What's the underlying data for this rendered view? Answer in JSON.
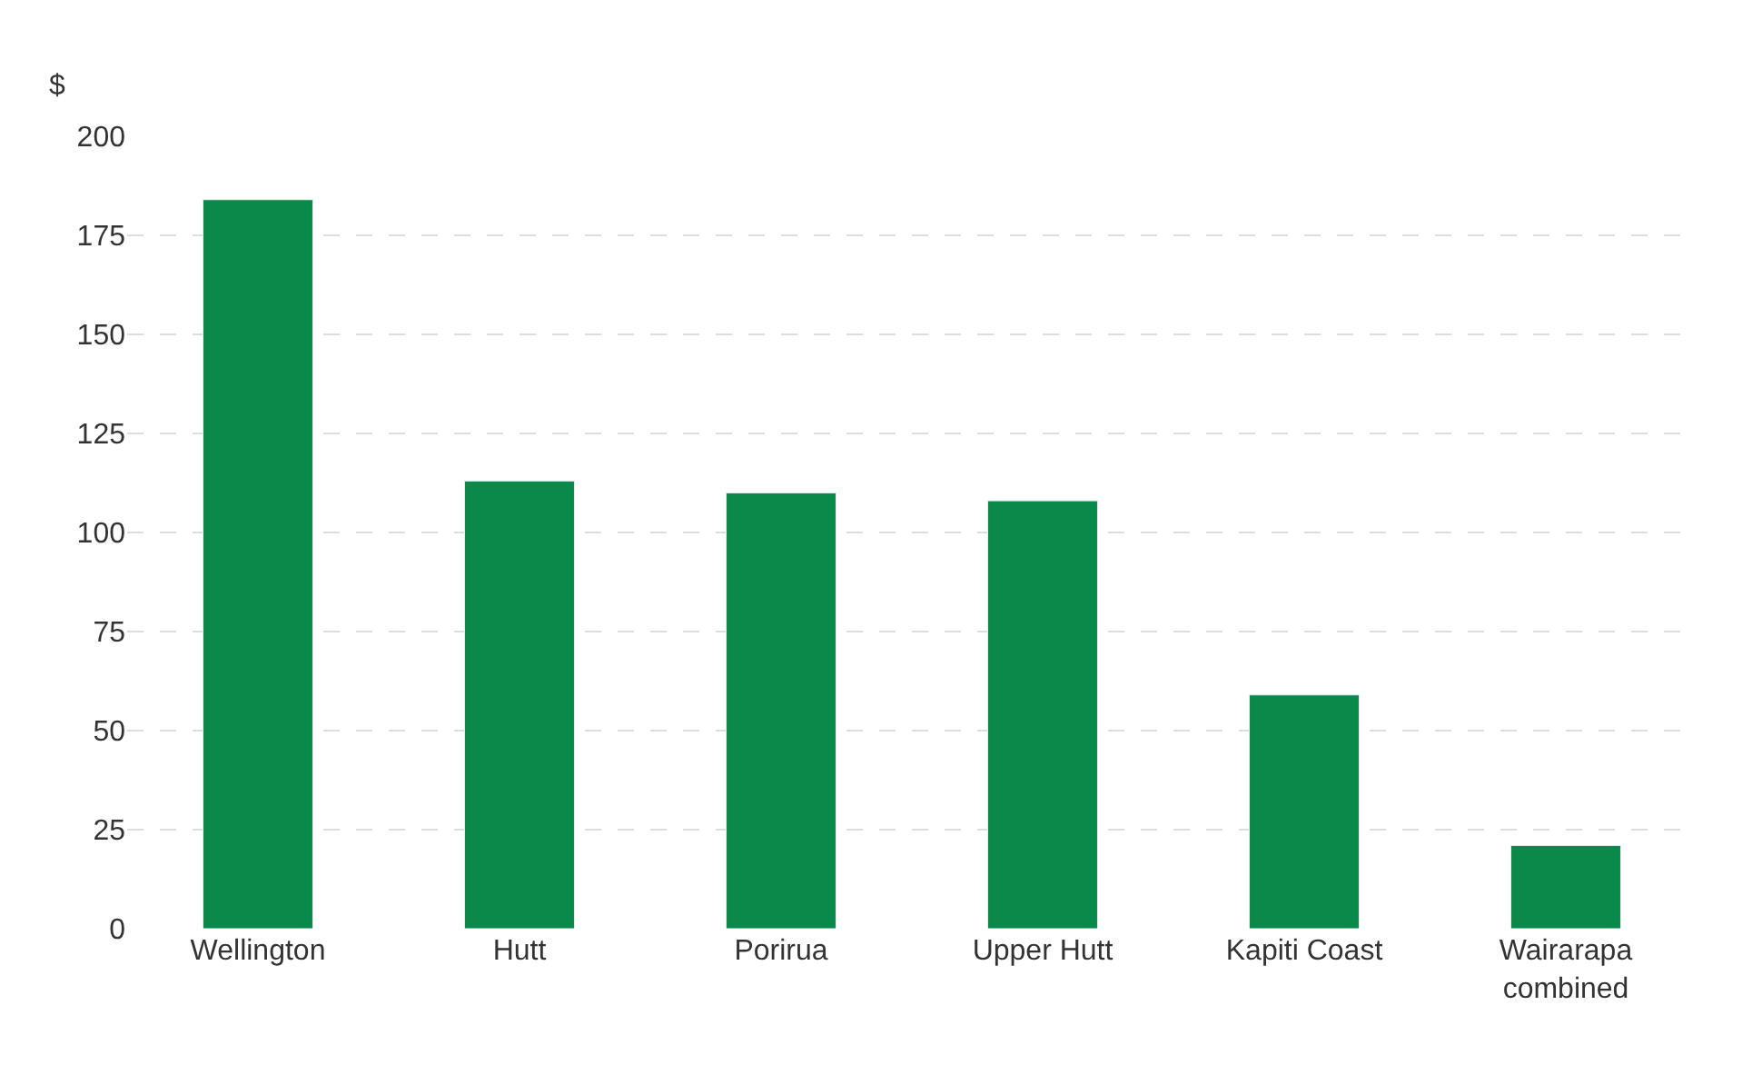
{
  "chart_data": {
    "type": "bar",
    "ylabel": "$",
    "categories": [
      "Wellington",
      "Hutt",
      "Porirua",
      "Upper Hutt",
      "Kapiti Coast",
      "Wairarapa combined"
    ],
    "values": [
      184,
      113,
      110,
      108,
      59,
      21
    ],
    "color": "#0a8a4a",
    "ylim": [
      0,
      200
    ],
    "yticks": [
      0,
      25,
      50,
      75,
      100,
      125,
      150,
      175,
      200
    ],
    "grid": "y"
  }
}
